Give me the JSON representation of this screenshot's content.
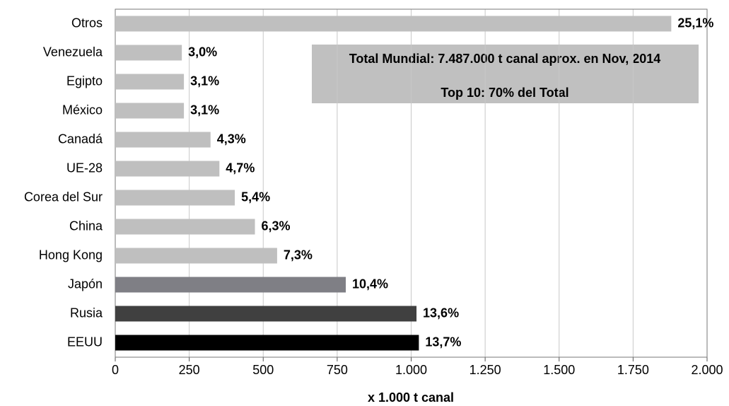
{
  "chart_data": {
    "type": "bar",
    "orientation": "horizontal",
    "categories": [
      "Otros",
      "Venezuela",
      "Egipto",
      "México",
      "Canadá",
      "UE-28",
      "Corea del Sur",
      "China",
      "Hong Kong",
      "Japón",
      "Rusia",
      "EEUU"
    ],
    "values": [
      1879,
      225,
      232,
      232,
      322,
      352,
      404,
      472,
      547,
      779,
      1018,
      1026
    ],
    "value_labels": [
      "25,1%",
      "3,0%",
      "3,1%",
      "3,1%",
      "4,3%",
      "4,7%",
      "5,4%",
      "6,3%",
      "7,3%",
      "10,4%",
      "13,6%",
      "13,7%"
    ],
    "colors": [
      "#bfbfbf",
      "#bfbfbf",
      "#bfbfbf",
      "#bfbfbf",
      "#bfbfbf",
      "#bfbfbf",
      "#bfbfbf",
      "#bfbfbf",
      "#bfbfbf",
      "#7f7f85",
      "#404040",
      "#000000"
    ],
    "xlabel": "x 1.000 t canal",
    "xlim": [
      0,
      2000
    ],
    "xticks": [
      0,
      250,
      500,
      750,
      {
        "value": 1000,
        "label": "1.000"
      },
      {
        "value": 1250,
        "label": "1.250"
      },
      {
        "value": 1500,
        "label": "1.500"
      },
      {
        "value": 1750,
        "label": "1.750"
      },
      {
        "value": 2000,
        "label": "2.000"
      }
    ],
    "grid": true,
    "annotations": [
      "Total Mundial: 7.487.000 t canal aprox. en Nov, 2014",
      "Top 10: 70% del Total"
    ]
  }
}
